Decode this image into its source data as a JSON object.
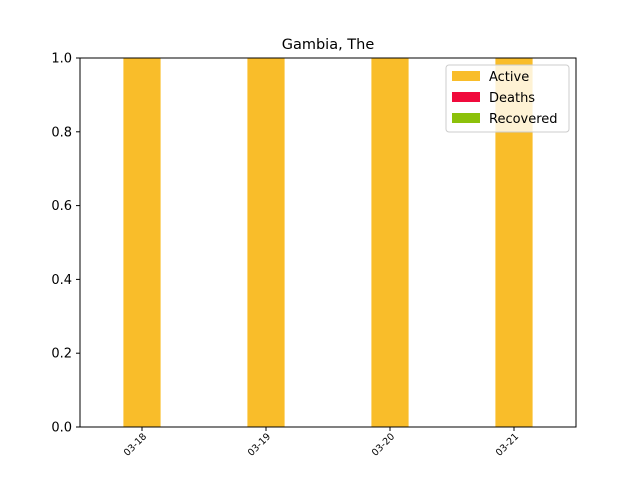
{
  "chart_data": {
    "type": "bar",
    "stacked": true,
    "title": "Gambia, The",
    "xlabel": "",
    "ylabel": "",
    "categories": [
      "03-18",
      "03-19",
      "03-20",
      "03-21"
    ],
    "series": [
      {
        "name": "Active",
        "color": "#f9bd2a",
        "values": [
          1,
          1,
          1,
          1
        ]
      },
      {
        "name": "Deaths",
        "color": "#f00a3c",
        "values": [
          0,
          0,
          0,
          0
        ]
      },
      {
        "name": "Recovered",
        "color": "#8cc10a",
        "values": [
          0,
          0,
          0,
          0
        ]
      }
    ],
    "ylim": [
      0,
      1.0
    ],
    "yticks": [
      "0.0",
      "0.2",
      "0.4",
      "0.6",
      "0.8",
      "1.0"
    ],
    "grid": false,
    "legend_position": "top-right"
  }
}
